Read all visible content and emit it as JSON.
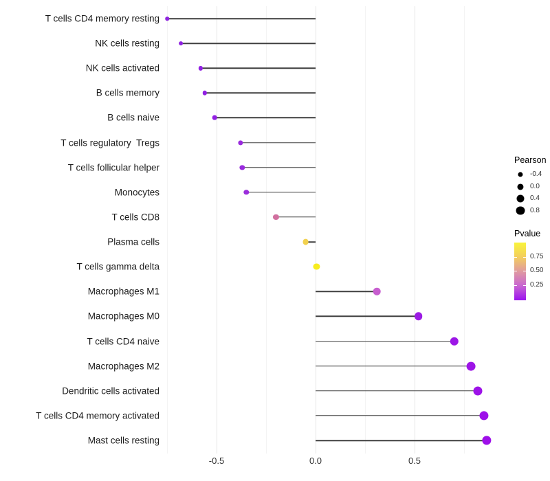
{
  "chart_data": {
    "type": "scatter",
    "variant": "lollipop",
    "title": "",
    "xlabel": "",
    "ylabel": "",
    "xlim": [
      -0.78,
      0.95
    ],
    "x_axis": {
      "tick_labels": [
        "-0.5",
        "0.0",
        "0.5"
      ],
      "tick_values": [
        -0.5,
        0.0,
        0.5
      ]
    },
    "grid": {
      "major_values": [
        -0.5,
        0.0,
        0.5
      ],
      "minor_values": [
        -0.75,
        -0.25,
        0.25,
        0.75
      ]
    },
    "rows": [
      {
        "label": "T cells CD4 memory resting",
        "pearson": -0.75,
        "color": "#8E24DF"
      },
      {
        "label": "NK cells resting",
        "pearson": -0.68,
        "color": "#8E22E0"
      },
      {
        "label": "NK cells activated",
        "pearson": -0.58,
        "color": "#9120E3"
      },
      {
        "label": "B cells memory",
        "pearson": -0.56,
        "color": "#9120E3"
      },
      {
        "label": "B cells naive",
        "pearson": -0.51,
        "color": "#921FE3"
      },
      {
        "label": "T cells regulatory  Tregs",
        "pearson": -0.38,
        "color": "#9A2BDD"
      },
      {
        "label": "T cells follicular helper",
        "pearson": -0.37,
        "color": "#992BDD"
      },
      {
        "label": "Monocytes",
        "pearson": -0.35,
        "color": "#9B2EDC"
      },
      {
        "label": "T cells CD8",
        "pearson": -0.2,
        "color": "#D1709F"
      },
      {
        "label": "Plasma cells",
        "pearson": -0.05,
        "color": "#F2D14E"
      },
      {
        "label": "T cells gamma delta",
        "pearson": 0.005,
        "color": "#F7EC1E"
      },
      {
        "label": "Macrophages M1",
        "pearson": 0.31,
        "color": "#C75ECF"
      },
      {
        "label": "Macrophages M0",
        "pearson": 0.52,
        "color": "#9C1BE4"
      },
      {
        "label": "T cells CD4 naive",
        "pearson": 0.7,
        "color": "#9C17E6"
      },
      {
        "label": "Macrophages M2",
        "pearson": 0.785,
        "color": "#9D14E7"
      },
      {
        "label": "Dendritic cells activated",
        "pearson": 0.82,
        "color": "#9D12E8"
      },
      {
        "label": "T cells CD4 memory activated",
        "pearson": 0.85,
        "color": "#9E10E9"
      },
      {
        "label": "Mast cells resting",
        "pearson": 0.865,
        "color": "#9E0FE9"
      }
    ],
    "legend_size": {
      "title": "Pearson",
      "entries": [
        {
          "label": "-0.4",
          "value": -0.4
        },
        {
          "label": "0.0",
          "value": 0.0
        },
        {
          "label": "0.4",
          "value": 0.4
        },
        {
          "label": "0.8",
          "value": 0.8
        }
      ],
      "dot_color": "#000000"
    },
    "legend_color": {
      "title": "Pvalue",
      "tick_labels": [
        "0.75",
        "0.50",
        "0.25"
      ],
      "tick_values": [
        0.75,
        0.5,
        0.25
      ],
      "gradient_top_to_bottom": [
        "#F9F43A",
        "#F3CE5E",
        "#E09AA0",
        "#C865D2",
        "#9B13EE"
      ]
    },
    "style_colors": {
      "stem": "#3F3F3F",
      "grid_major": "#E6E6E6",
      "grid_minor": "#F3F3F3",
      "axis_text": "#303030",
      "label_text": "#1A1A1A",
      "background": "#FFFFFF"
    }
  }
}
